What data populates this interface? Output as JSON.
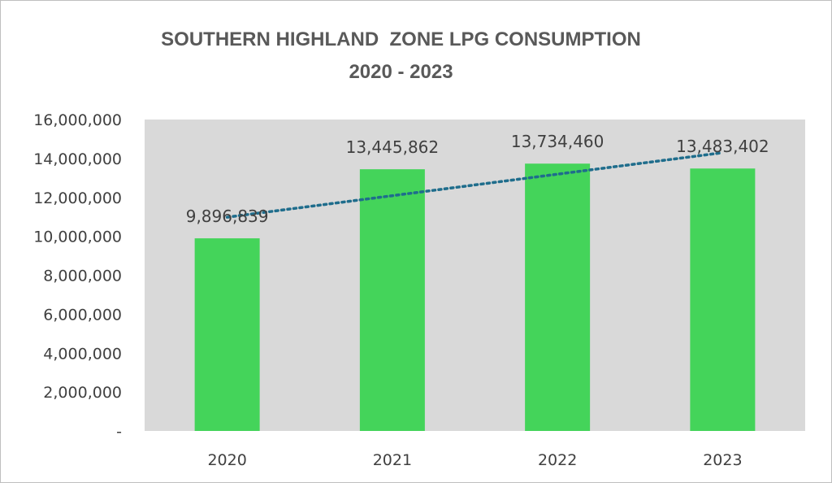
{
  "chart_data": {
    "type": "bar",
    "title_line1": "SOUTHERN HIGHLAND  ZONE LPG CONSUMPTION",
    "title_line2": "2020 - 2023",
    "categories": [
      "2020",
      "2021",
      "2022",
      "2023"
    ],
    "values": [
      9896839,
      13445862,
      13734460,
      13483402
    ],
    "value_labels": [
      "9,896,839",
      "13,445,862",
      "13,734,460",
      "13,483,402"
    ],
    "ylim": [
      0,
      16000000
    ],
    "yticks": [
      0,
      2000000,
      4000000,
      6000000,
      8000000,
      10000000,
      12000000,
      14000000,
      16000000
    ],
    "ytick_labels": [
      "-",
      "2,000,000",
      "4,000,000",
      "6,000,000",
      "8,000,000",
      "10,000,000",
      "12,000,000",
      "14,000,000",
      "16,000,000"
    ],
    "trendline": {
      "type": "linear",
      "style": "dotted"
    },
    "xlabel": "",
    "ylabel": "",
    "colors": {
      "bar": "#44d45a",
      "plot_bg": "#d9d9d9",
      "trend": "#1f6d8c",
      "text": "#404040"
    }
  }
}
